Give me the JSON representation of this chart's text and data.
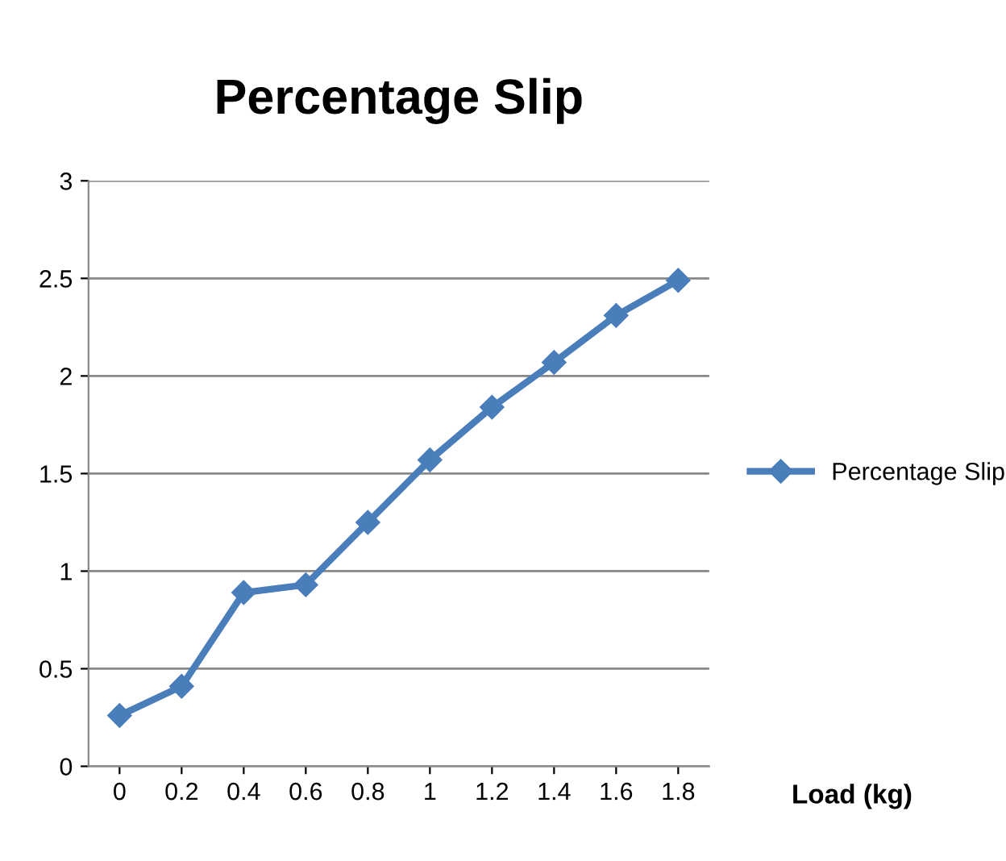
{
  "chart_data": {
    "type": "line",
    "title": "Percentage Slip",
    "xlabel": "Load (kg)",
    "categories": [
      "0",
      "0.2",
      "0.4",
      "0.6",
      "0.8",
      "1",
      "1.2",
      "1.4",
      "1.6",
      "1.8"
    ],
    "series": [
      {
        "name": "Percentage Slip",
        "color": "#4a7ebb",
        "values": [
          0.26,
          0.41,
          0.89,
          0.93,
          1.25,
          1.57,
          1.84,
          2.07,
          2.31,
          2.49
        ]
      }
    ],
    "ylim": [
      0,
      3
    ],
    "yticks": [
      0,
      0.5,
      1,
      1.5,
      2,
      2.5,
      3
    ],
    "grid": "y",
    "legend": "right",
    "marker": "diamond",
    "line_style": "solid"
  }
}
